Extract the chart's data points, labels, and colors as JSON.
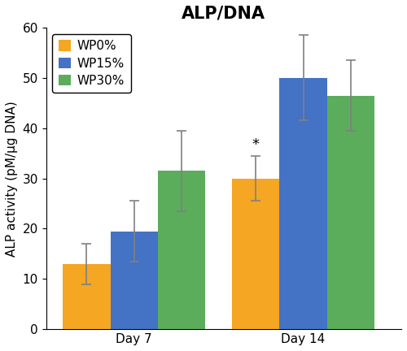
{
  "title": "ALP/DNA",
  "ylabel": "ALP activity (pM/μg DNA)",
  "groups": [
    "Day 7",
    "Day 14"
  ],
  "series": [
    {
      "label": "WP0%",
      "color": "#F5A623",
      "values": [
        13.0,
        30.0
      ],
      "errors": [
        4.0,
        4.5
      ]
    },
    {
      "label": "WP15%",
      "color": "#4472C4",
      "values": [
        19.5,
        50.0
      ],
      "errors": [
        6.0,
        8.5
      ]
    },
    {
      "label": "WP30%",
      "color": "#5BAD5B",
      "values": [
        31.5,
        46.5
      ],
      "errors": [
        8.0,
        7.0
      ]
    }
  ],
  "ylim": [
    0,
    60
  ],
  "yticks": [
    0,
    10,
    20,
    30,
    40,
    50,
    60
  ],
  "bar_width": 0.28,
  "group_centers": [
    0.42,
    1.42
  ],
  "asterisk": {
    "group": 1,
    "series": 0,
    "text": "*"
  },
  "legend_loc": "upper left",
  "background_color": "#ffffff",
  "title_fontsize": 15,
  "label_fontsize": 11,
  "tick_fontsize": 11,
  "legend_fontsize": 11,
  "error_color": "#808080",
  "xlim": [
    -0.1,
    2.0
  ]
}
